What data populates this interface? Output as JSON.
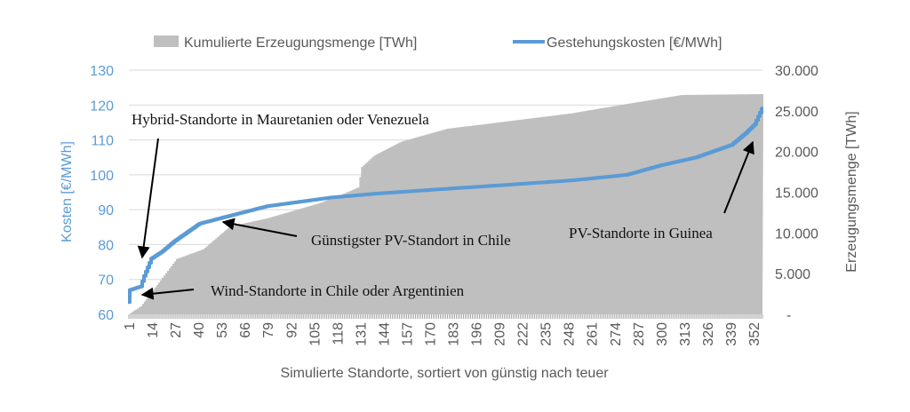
{
  "chart_data": {
    "type": "area+line",
    "title": "",
    "xlabel": "Simulierte Standorte, sortiert von günstig nach teuer",
    "ylabel_left": "Kosten [€/MWh]",
    "ylabel_right": "Erzeugungsmenge  [TWh]",
    "x_count": 357,
    "x_ticks": [
      "1",
      "14",
      "27",
      "40",
      "53",
      "66",
      "79",
      "92",
      "105",
      "118",
      "131",
      "144",
      "157",
      "170",
      "183",
      "196",
      "209",
      "222",
      "235",
      "248",
      "261",
      "274",
      "287",
      "300",
      "313",
      "326",
      "339",
      "352"
    ],
    "ylim_left": [
      60,
      130
    ],
    "y_ticks_left": [
      "60",
      "70",
      "80",
      "90",
      "100",
      "110",
      "120",
      "130"
    ],
    "ylim_right": [
      0,
      30000
    ],
    "y_ticks_right": [
      "-",
      "5.000",
      "10.000",
      "15.000",
      "20.000",
      "25.000",
      "30.000"
    ],
    "grid": true,
    "legend_position": "top",
    "series": [
      {
        "name": "Kumulierte Erzeugungsmenge [TWh]",
        "kind": "area",
        "axis": "right",
        "color": "#bfbfbf",
        "x": [
          1,
          8,
          18,
          28,
          43,
          58,
          79,
          109,
          126,
          130,
          132,
          139,
          154,
          180,
          210,
          250,
          281,
          312,
          357
        ],
        "y": [
          0,
          1000,
          3900,
          6800,
          8000,
          10800,
          11800,
          13700,
          15200,
          15600,
          18100,
          19500,
          21200,
          22800,
          23600,
          24700,
          25850,
          26950,
          27050
        ]
      },
      {
        "name": "Gestehungskosten [€/MWh]",
        "kind": "line",
        "axis": "left",
        "color": "#5b9bd5",
        "x": [
          1,
          2,
          8,
          10,
          14,
          20,
          27,
          41,
          56,
          79,
          115,
          140,
          180,
          210,
          250,
          281,
          300,
          320,
          340,
          348,
          353,
          357
        ],
        "y": [
          63.5,
          67,
          68,
          71,
          76,
          78,
          81,
          86,
          88,
          91,
          93.5,
          94.6,
          96,
          97,
          98.4,
          100,
          102.7,
          105,
          108.6,
          112,
          114.5,
          119
        ]
      }
    ],
    "annotations": [
      {
        "text": "Hybrid-Standorte in Mauretanien oder Venezuela"
      },
      {
        "text": "Wind-Standorte in Chile oder Argentinien"
      },
      {
        "text": "Günstigster PV-Standort in Chile"
      },
      {
        "text": "PV-Standorte in Guinea"
      }
    ]
  }
}
